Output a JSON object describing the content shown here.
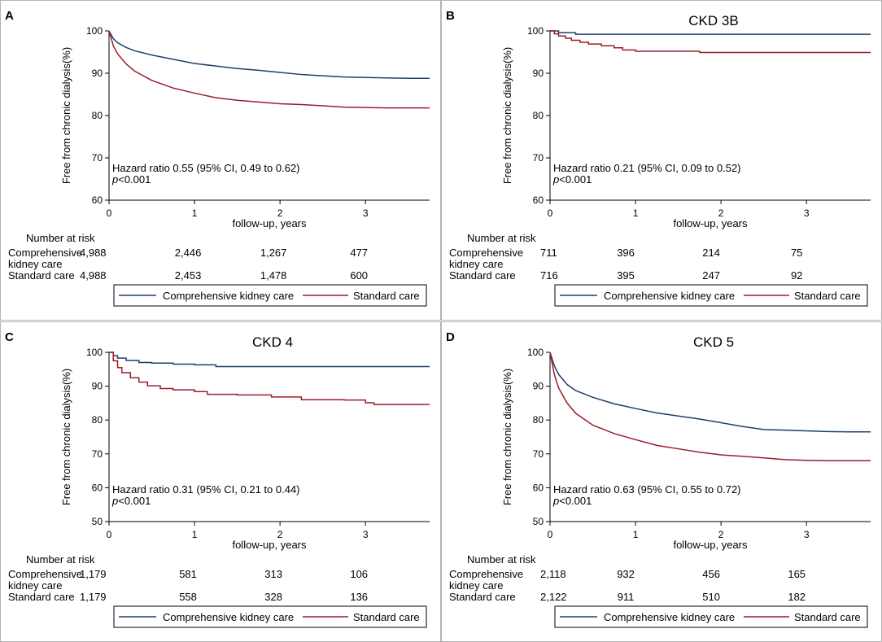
{
  "colors": {
    "comprehensive": "#1f3f6b",
    "standard": "#9c1c2c",
    "axis": "#000000",
    "panel_border": "#b4b4b4",
    "background": "#ffffff"
  },
  "shared": {
    "ylabel": "Free from chronic dialysis(%)",
    "xlabel": "follow-up, years",
    "risk_header": "Number at risk",
    "row_labels": [
      [
        "Comprehensive",
        "kidney care"
      ],
      [
        "Standard care"
      ]
    ],
    "legend": [
      "Comprehensive kidney care",
      "Standard care"
    ],
    "p_prefix": "p",
    "p_suffix": "<0.001",
    "xticks": [
      "0",
      "1",
      "2",
      "3"
    ]
  },
  "chart_data": [
    {
      "panel": "A",
      "type": "line",
      "title": "",
      "xlabel": "follow-up, years",
      "ylabel": "Free from chronic dialysis(%)",
      "xlim": [
        0,
        3.75
      ],
      "ylim": [
        60,
        100
      ],
      "yticks": [
        60,
        70,
        80,
        90,
        100
      ],
      "annotation": "Hazard ratio 0.55 (95% CI, 0.49 to 0.62)",
      "series": [
        {
          "name": "Comprehensive kidney care",
          "x": [
            0,
            0.05,
            0.1,
            0.2,
            0.3,
            0.5,
            0.75,
            1.0,
            1.25,
            1.5,
            1.75,
            2.0,
            2.25,
            2.5,
            2.75,
            3.0,
            3.25,
            3.5,
            3.75
          ],
          "y": [
            100,
            98.2,
            97.2,
            96.1,
            95.3,
            94.3,
            93.3,
            92.3,
            91.7,
            91.1,
            90.7,
            90.2,
            89.7,
            89.4,
            89.1,
            89.0,
            88.9,
            88.8,
            88.8
          ]
        },
        {
          "name": "Standard care",
          "x": [
            0,
            0.05,
            0.1,
            0.2,
            0.3,
            0.5,
            0.75,
            1.0,
            1.25,
            1.5,
            1.75,
            2.0,
            2.25,
            2.5,
            2.75,
            3.0,
            3.25,
            3.5,
            3.75
          ],
          "y": [
            100,
            96.5,
            94.6,
            92.2,
            90.5,
            88.3,
            86.5,
            85.3,
            84.2,
            83.6,
            83.2,
            82.8,
            82.6,
            82.3,
            82.0,
            81.9,
            81.8,
            81.8,
            81.8
          ]
        }
      ],
      "risk_table": {
        "comprehensive": [
          "4,988",
          "2,446",
          "1,267",
          "477"
        ],
        "standard": [
          "4,988",
          "2,453",
          "1,478",
          "600"
        ]
      }
    },
    {
      "panel": "B",
      "type": "line",
      "title": "CKD 3B",
      "xlabel": "follow-up, years",
      "ylabel": "Free from chronic dialysis(%)",
      "xlim": [
        0,
        3.75
      ],
      "ylim": [
        60,
        100
      ],
      "yticks": [
        60,
        70,
        80,
        90,
        100
      ],
      "annotation": "Hazard ratio 0.21 (95% CI, 0.09 to 0.52)",
      "series": [
        {
          "name": "Comprehensive kidney care",
          "step": true,
          "x": [
            0,
            0.1,
            0.3,
            3.75
          ],
          "y": [
            100,
            99.6,
            99.2,
            99.2
          ]
        },
        {
          "name": "Standard care",
          "step": true,
          "x": [
            0,
            0.05,
            0.1,
            0.18,
            0.25,
            0.35,
            0.45,
            0.6,
            0.75,
            0.85,
            1.0,
            1.3,
            1.75,
            2.5,
            3.75
          ],
          "y": [
            100,
            99.3,
            98.8,
            98.3,
            97.8,
            97.3,
            96.9,
            96.5,
            96.0,
            95.5,
            95.2,
            95.2,
            94.9,
            94.9,
            94.9
          ]
        }
      ],
      "risk_table": {
        "comprehensive": [
          "711",
          "396",
          "214",
          "75"
        ],
        "standard": [
          "716",
          "395",
          "247",
          "92"
        ]
      }
    },
    {
      "panel": "C",
      "type": "line",
      "title": "CKD 4",
      "xlabel": "follow-up, years",
      "ylabel": "Free from chronic dialysis(%)",
      "xlim": [
        0,
        3.75
      ],
      "ylim": [
        50,
        100
      ],
      "yticks": [
        50,
        60,
        70,
        80,
        90,
        100
      ],
      "annotation": "Hazard ratio 0.31 (95% CI, 0.21 to 0.44)",
      "series": [
        {
          "name": "Comprehensive kidney care",
          "step": true,
          "x": [
            0,
            0.05,
            0.1,
            0.2,
            0.35,
            0.5,
            0.75,
            1.0,
            1.25,
            3.75
          ],
          "y": [
            100,
            99.0,
            98.3,
            97.6,
            97.0,
            96.8,
            96.5,
            96.3,
            95.8,
            95.8
          ]
        },
        {
          "name": "Standard care",
          "step": true,
          "x": [
            0,
            0.05,
            0.1,
            0.15,
            0.25,
            0.35,
            0.45,
            0.6,
            0.75,
            1.0,
            1.15,
            1.5,
            1.9,
            2.25,
            2.75,
            3.0,
            3.1,
            3.75
          ],
          "y": [
            100,
            97.5,
            95.5,
            94.0,
            92.5,
            91.2,
            90.1,
            89.3,
            88.9,
            88.4,
            87.6,
            87.4,
            86.8,
            86.0,
            85.9,
            85.1,
            84.6,
            84.6
          ]
        }
      ],
      "risk_table": {
        "comprehensive": [
          "1,179",
          "581",
          "313",
          "106"
        ],
        "standard": [
          "1,179",
          "558",
          "328",
          "136"
        ]
      }
    },
    {
      "panel": "D",
      "type": "line",
      "title": "CKD 5",
      "xlabel": "follow-up, years",
      "ylabel": "Free from chronic dialysis(%)",
      "xlim": [
        0,
        3.75
      ],
      "ylim": [
        50,
        100
      ],
      "yticks": [
        50,
        60,
        70,
        80,
        90,
        100
      ],
      "annotation": "Hazard ratio 0.63 (95% CI, 0.55 to 0.72)",
      "series": [
        {
          "name": "Comprehensive kidney care",
          "x": [
            0,
            0.05,
            0.1,
            0.2,
            0.3,
            0.5,
            0.75,
            1.0,
            1.25,
            1.5,
            1.75,
            2.0,
            2.25,
            2.5,
            2.75,
            3.0,
            3.25,
            3.5,
            3.75
          ],
          "y": [
            100,
            96.0,
            93.5,
            90.5,
            88.7,
            86.7,
            84.8,
            83.4,
            82.1,
            81.2,
            80.3,
            79.2,
            78.1,
            77.2,
            77.0,
            76.8,
            76.6,
            76.5,
            76.5
          ]
        },
        {
          "name": "Standard care",
          "x": [
            0,
            0.05,
            0.1,
            0.2,
            0.3,
            0.5,
            0.75,
            1.0,
            1.25,
            1.5,
            1.75,
            2.0,
            2.25,
            2.5,
            2.75,
            3.0,
            3.25,
            3.5,
            3.75
          ],
          "y": [
            100,
            93.5,
            89.5,
            85.0,
            82.0,
            78.5,
            76.0,
            74.2,
            72.5,
            71.5,
            70.5,
            69.7,
            69.3,
            68.8,
            68.3,
            68.1,
            68.0,
            68.0,
            68.0
          ]
        }
      ],
      "risk_table": {
        "comprehensive": [
          "2,118",
          "932",
          "456",
          "165"
        ],
        "standard": [
          "2,122",
          "911",
          "510",
          "182"
        ]
      }
    }
  ]
}
